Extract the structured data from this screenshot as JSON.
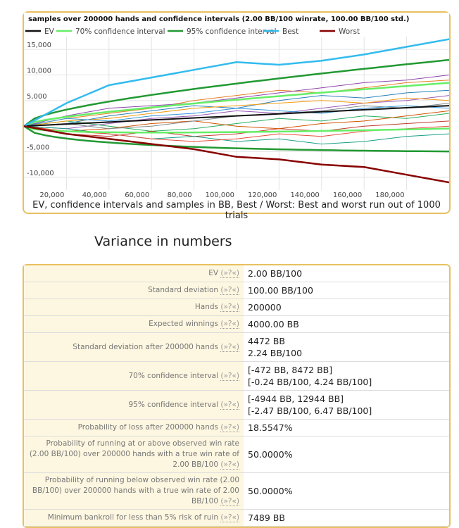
{
  "chart_data": {
    "type": "line",
    "title": "samples over 200000 hands and confidence intervals (2.00 BB/100 winrate, 100.00 BB/100 std.)",
    "caption": "EV, confidence intervals and samples in BB, Best / Worst: Best and worst run out of 1000 trials",
    "winrate": 2.0,
    "std": 100.0,
    "hands": 200000,
    "xlim": [
      0,
      200000
    ],
    "ylim": [
      -12500,
      17500
    ],
    "x_ticks": [
      20000,
      40000,
      60000,
      80000,
      100000,
      120000,
      140000,
      160000,
      180000
    ],
    "x_tick_labels": [
      "20,000",
      "40,000",
      "60,000",
      "80,000",
      "100,000",
      "120,000",
      "140,000",
      "160,000",
      "180,000"
    ],
    "y_ticks": [
      15000,
      10000,
      5000,
      -5000,
      -10000
    ],
    "y_tick_labels": [
      "15,000",
      "10,000",
      "5,000",
      "-5,000",
      "-10,000"
    ],
    "grid": true,
    "legend_placement": "top",
    "legend": [
      {
        "name": "EV",
        "color": "#111111"
      },
      {
        "name": "70% confidence interval",
        "color": "#66ee66"
      },
      {
        "name": "95% confidence interval",
        "color": "#229933"
      },
      {
        "name": "Best",
        "color": "#33bbee"
      },
      {
        "name": "Worst",
        "color": "#880000"
      }
    ],
    "x": [
      0,
      20000,
      40000,
      60000,
      80000,
      100000,
      120000,
      140000,
      160000,
      180000,
      200000
    ],
    "best": [
      0,
      4500,
      8000,
      9500,
      11000,
      12500,
      12000,
      12800,
      14000,
      15500,
      17000
    ],
    "worst": [
      0,
      -1500,
      -2500,
      -3500,
      -4500,
      -6000,
      -6500,
      -7500,
      -8000,
      -9500,
      -11000
    ],
    "samples": [
      {
        "color": "#e67e22",
        "values": [
          0,
          1500,
          2500,
          3500,
          5000,
          6000,
          7000,
          6500,
          7500,
          8500,
          9000
        ]
      },
      {
        "color": "#9b59b6",
        "values": [
          0,
          -500,
          500,
          1500,
          2000,
          3000,
          2500,
          3500,
          4500,
          5000,
          6000
        ]
      },
      {
        "color": "#27ae60",
        "values": [
          0,
          1000,
          0,
          -1000,
          -500,
          500,
          1500,
          1000,
          2000,
          1500,
          2500
        ]
      },
      {
        "color": "#c0392b",
        "values": [
          0,
          -1500,
          -2000,
          -1000,
          -2000,
          -1500,
          -500,
          -1000,
          0,
          500,
          1000
        ]
      },
      {
        "color": "#2980b9",
        "values": [
          0,
          500,
          2000,
          3000,
          4000,
          3500,
          5000,
          6000,
          5500,
          6500,
          7000
        ]
      },
      {
        "color": "#d35400",
        "values": [
          0,
          -1000,
          -500,
          500,
          1000,
          0,
          -500,
          500,
          1000,
          2000,
          3000
        ]
      },
      {
        "color": "#8e44ad",
        "values": [
          0,
          2000,
          3500,
          4000,
          4500,
          5500,
          6500,
          7500,
          8500,
          9000,
          10000
        ]
      },
      {
        "color": "#16a085",
        "values": [
          0,
          -500,
          -1500,
          -2500,
          -2000,
          -3000,
          -2500,
          -3500,
          -3000,
          -2000,
          -1500
        ]
      },
      {
        "color": "#f39c12",
        "values": [
          0,
          1000,
          1500,
          2500,
          3500,
          4000,
          4500,
          5000,
          4500,
          5500,
          5000
        ]
      },
      {
        "color": "#7f8c8d",
        "values": [
          0,
          500,
          -500,
          0,
          1000,
          2000,
          2500,
          3000,
          4000,
          3500,
          4500
        ]
      },
      {
        "color": "#e74c3c",
        "values": [
          0,
          -1000,
          -1500,
          -2500,
          -3000,
          -2500,
          -1500,
          -2000,
          -1000,
          -500,
          0
        ]
      },
      {
        "color": "#3498db",
        "values": [
          0,
          1500,
          1000,
          2000,
          2500,
          3500,
          3000,
          2500,
          3500,
          4000,
          3500
        ]
      }
    ]
  },
  "section_title": "Variance in numbers",
  "help_label": "(»?«)",
  "rows": [
    {
      "label": "EV",
      "values": [
        "2.00 BB/100"
      ]
    },
    {
      "label": "Standard deviation",
      "values": [
        "100.00 BB/100"
      ]
    },
    {
      "label": "Hands",
      "values": [
        "200000"
      ]
    },
    {
      "label": "Expected winnings",
      "values": [
        "4000.00 BB"
      ]
    },
    {
      "label": "Standard deviation after 200000 hands",
      "values": [
        "4472 BB",
        "2.24 BB/100"
      ]
    },
    {
      "label": "70% confidence interval",
      "values": [
        "[-472 BB, 8472 BB]",
        "[-0.24 BB/100, 4.24 BB/100]"
      ]
    },
    {
      "label": "95% confidence interval",
      "values": [
        "[-4944 BB, 12944 BB]",
        "[-2.47 BB/100, 6.47 BB/100]"
      ]
    },
    {
      "label": "Probability of loss after 200000 hands",
      "values": [
        "18.5547%"
      ]
    },
    {
      "label": "Probability of running at or above observed win rate (2.00 BB/100) over 200000 hands with a true win rate of 2.00 BB/100",
      "values": [
        "50.0000%"
      ]
    },
    {
      "label": "Probability of running below observed win rate (2.00 BB/100) over 200000 hands with a true win rate of 2.00 BB/100",
      "values": [
        "50.0000%"
      ]
    },
    {
      "label": "Minimum bankroll for less than 5% risk of ruin",
      "values": [
        "7489 BB"
      ]
    }
  ]
}
